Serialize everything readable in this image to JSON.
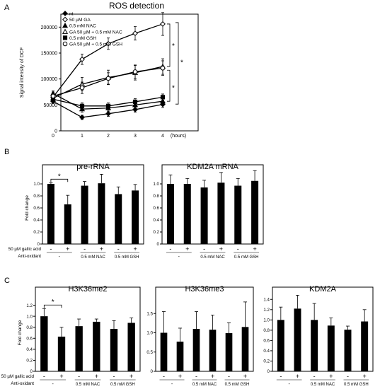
{
  "chart_data": [
    {
      "type": "line",
      "panel": "A",
      "title": "ROS detection",
      "ylabel": "Signal intensity of DCF",
      "xlabel_suffix": "(hours)",
      "x": [
        0,
        1,
        2,
        3,
        4
      ],
      "ylim": [
        0,
        225000
      ],
      "yticks": [
        "0",
        "50000",
        "100000",
        "150000",
        "200000"
      ],
      "xticks": [
        "0",
        "1",
        "2",
        "3",
        "4"
      ],
      "legend_placement": "top-left",
      "series": [
        {
          "name": "nt",
          "marker": "filled-diamond",
          "values": [
            57000,
            26000,
            33000,
            41000,
            51000
          ],
          "errors": [
            4000,
            4000,
            5000,
            5000,
            6000
          ]
        },
        {
          "name": "50 µM GA",
          "marker": "open-diamond",
          "values": [
            65000,
            138000,
            168000,
            188000,
            206000
          ],
          "errors": [
            8000,
            10000,
            11000,
            13000,
            22000
          ]
        },
        {
          "name": "0.5 mM NAC",
          "marker": "filled-triangle",
          "values": [
            72000,
            42000,
            44000,
            50000,
            57000
          ],
          "errors": [
            5000,
            6000,
            6000,
            6000,
            6000
          ]
        },
        {
          "name": "GA 50 µM + 0.5 mM NAC",
          "marker": "open-triangle",
          "values": [
            63000,
            90000,
            103000,
            112000,
            124000
          ],
          "errors": [
            8000,
            13000,
            14000,
            14000,
            15000
          ]
        },
        {
          "name": "0.5 mM GSH",
          "marker": "filled-square",
          "values": [
            61000,
            48000,
            48000,
            56000,
            65000
          ],
          "errors": [
            5000,
            6000,
            6000,
            6000,
            6000
          ]
        },
        {
          "name": "GA 50 µM + 0.5 mM GSH",
          "marker": "open-circle",
          "values": [
            67000,
            83000,
            101000,
            114000,
            121000
          ],
          "errors": [
            8000,
            11000,
            11000,
            13000,
            14000
          ]
        }
      ],
      "significance": [
        "*",
        "*",
        "*"
      ]
    },
    {
      "type": "bar",
      "panel": "B",
      "title": "pre-rRNA",
      "ylabel": "Fold change",
      "ylim": [
        0,
        1.2
      ],
      "yticks": [
        "0",
        "0.2",
        "0.4",
        "0.6",
        "0.8",
        "1.0"
      ],
      "values": [
        1.0,
        0.66,
        0.97,
        1.01,
        0.83,
        0.89
      ],
      "errors": [
        0.02,
        0.15,
        0.07,
        0.15,
        0.12,
        0.1
      ],
      "significance": "*"
    },
    {
      "type": "bar",
      "panel": "B",
      "title": "KDM2A mRNA",
      "ylabel": "",
      "ylim": [
        0,
        1.2
      ],
      "yticks": [
        "0",
        "0.2",
        "0.4",
        "0.6",
        "0.8",
        "1.0"
      ],
      "values": [
        1.0,
        1.0,
        0.94,
        1.02,
        0.97,
        1.05
      ],
      "errors": [
        0.15,
        0.09,
        0.12,
        0.17,
        0.12,
        0.17
      ]
    },
    {
      "type": "bar",
      "panel": "C",
      "title": "H3K36me2",
      "ylabel": "Fold change",
      "ylim": [
        0,
        1.4
      ],
      "yticks": [
        "0",
        "0.2",
        "0.4",
        "0.6",
        "0.8",
        "1.0",
        "1.2"
      ],
      "values": [
        1.0,
        0.63,
        0.82,
        0.9,
        0.77,
        0.88
      ],
      "errors": [
        0.14,
        0.17,
        0.13,
        0.05,
        0.15,
        0.09
      ],
      "significance": "*"
    },
    {
      "type": "bar",
      "panel": "C",
      "title": "H3K36me3",
      "ylabel": "",
      "ylim": [
        0,
        2.0
      ],
      "yticks": [
        "0",
        "0.5",
        "1.0",
        "1.5"
      ],
      "values": [
        1.0,
        0.77,
        1.1,
        1.08,
        0.99,
        1.15
      ],
      "errors": [
        0.55,
        0.35,
        0.45,
        0.38,
        0.27,
        0.65
      ]
    },
    {
      "type": "bar",
      "panel": "C",
      "title": "KDM2A",
      "ylabel": "",
      "ylim": [
        0,
        1.5
      ],
      "yticks": [
        "0",
        "0.2",
        "0.4",
        "0.6",
        "0.8",
        "1.0",
        "1.2",
        "1.4"
      ],
      "values": [
        1.0,
        1.22,
        1.0,
        0.89,
        0.81,
        0.97
      ],
      "errors": [
        0.25,
        0.26,
        0.32,
        0.15,
        0.07,
        0.23
      ]
    }
  ],
  "panel_letters": {
    "a": "A",
    "b": "B",
    "c": "C"
  },
  "bar_labels": {
    "ga_label": "50 µM gallic acid",
    "anti_label": "Anti-oxidant",
    "signs": [
      "-",
      "+",
      "-",
      "+",
      "-",
      "+"
    ],
    "anti_dash": "-",
    "nac": "0.5 mM NAC",
    "gsh": "0.5 mM GSH"
  }
}
